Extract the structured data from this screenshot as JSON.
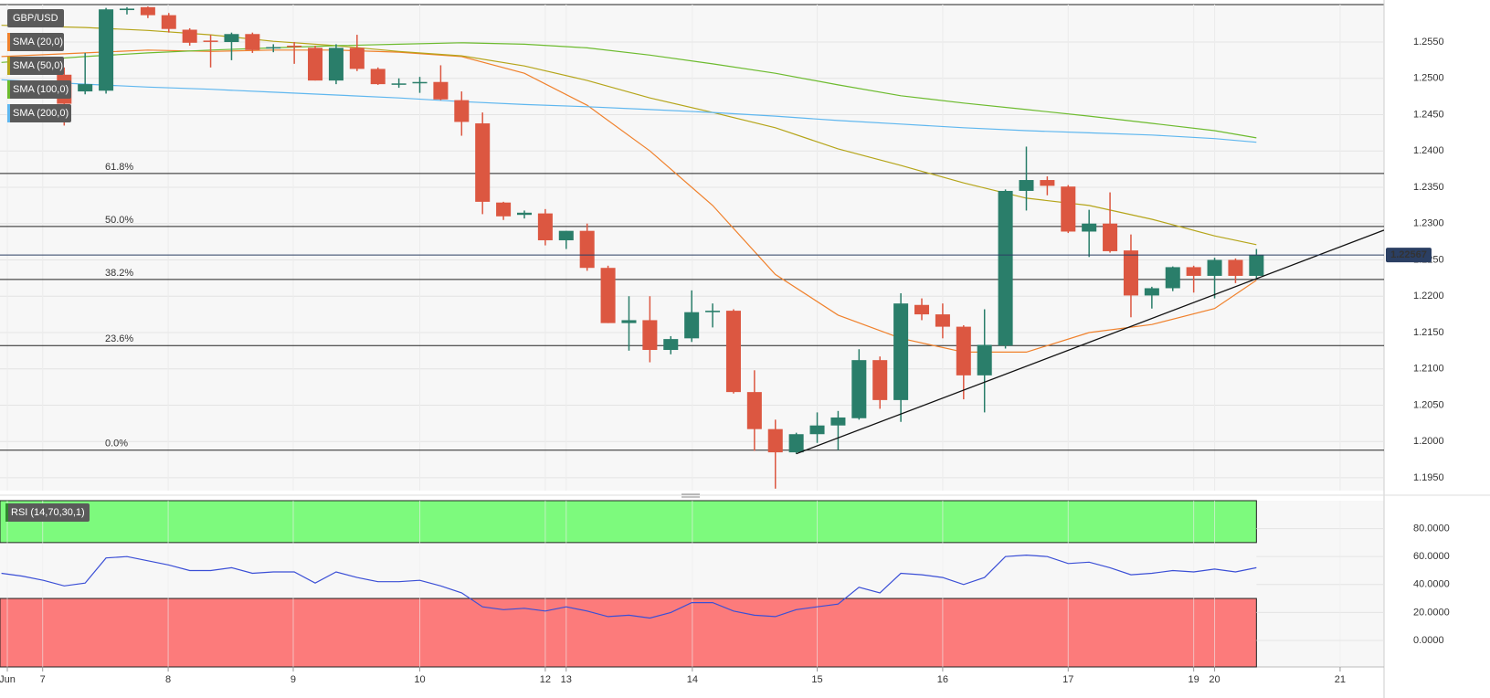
{
  "chart_data": [
    {
      "type": "candlestick",
      "title": "GBP/USD",
      "x": [
        -2,
        -1,
        0,
        1,
        2,
        3,
        4,
        5,
        6,
        7,
        8,
        9,
        10,
        11,
        12,
        13,
        14,
        15,
        16,
        17,
        18,
        19,
        20,
        21,
        22,
        23,
        24,
        25,
        26,
        27,
        28,
        29,
        30,
        31,
        32,
        33,
        34,
        35,
        36,
        37,
        38,
        39,
        40,
        41,
        42,
        43,
        44,
        45,
        46,
        47,
        48,
        49,
        50,
        51,
        52,
        53,
        54,
        55
      ],
      "open": [
        1.2505,
        1.2482,
        1.2483,
        1.2594,
        1.2598,
        1.2587,
        1.2567,
        1.2552,
        1.255,
        1.2561,
        1.2543,
        1.2545,
        1.2542,
        1.2497,
        1.2542,
        1.2513,
        1.2492,
        1.2494,
        1.2495,
        1.247,
        1.2438,
        1.2329,
        1.2312,
        1.2314,
        1.2277,
        1.229,
        1.2239,
        1.2163,
        1.2167,
        1.2126,
        1.2142,
        1.2178,
        1.218,
        1.2068,
        1.2017,
        1.1985,
        1.201,
        1.2022,
        1.2032,
        1.2112,
        1.2057,
        1.2188,
        1.2175,
        1.2158,
        1.2091,
        1.2132,
        1.2345,
        1.236,
        1.2351,
        1.2289,
        1.23,
        1.2263,
        1.2201,
        1.2211,
        1.224,
        1.2228,
        1.225,
        1.2228
      ],
      "high": [
        1.2515,
        1.2535,
        1.2597,
        1.2598,
        1.2599,
        1.259,
        1.2569,
        1.256,
        1.2563,
        1.2563,
        1.2547,
        1.255,
        1.2545,
        1.2547,
        1.256,
        1.2515,
        1.25,
        1.2502,
        1.2518,
        1.2482,
        1.2453,
        1.233,
        1.2318,
        1.232,
        1.229,
        1.23,
        1.2242,
        1.22,
        1.22,
        1.2145,
        1.2208,
        1.219,
        1.2182,
        1.2098,
        1.203,
        1.2012,
        1.204,
        1.2042,
        1.2127,
        1.2117,
        1.2204,
        1.2197,
        1.219,
        1.216,
        1.2182,
        1.2347,
        1.2406,
        1.2365,
        1.2353,
        1.2319,
        1.2343,
        1.2285,
        1.2213,
        1.2241,
        1.2242,
        1.2253,
        1.2252,
        1.2265
      ],
      "low": [
        1.2435,
        1.2478,
        1.2479,
        1.2588,
        1.2583,
        1.2563,
        1.2545,
        1.2515,
        1.2525,
        1.2535,
        1.2536,
        1.252,
        1.2497,
        1.2492,
        1.251,
        1.2491,
        1.2487,
        1.248,
        1.247,
        1.2421,
        1.2313,
        1.2305,
        1.2307,
        1.227,
        1.2265,
        1.2235,
        1.2163,
        1.2125,
        1.2109,
        1.212,
        1.2137,
        1.2157,
        1.2066,
        1.1987,
        1.1935,
        1.1983,
        1.1998,
        1.1988,
        1.203,
        1.2045,
        1.2027,
        1.2167,
        1.2142,
        1.2058,
        1.204,
        1.2128,
        1.2318,
        1.2339,
        1.2287,
        1.2254,
        1.226,
        1.2171,
        1.2183,
        1.2207,
        1.2205,
        1.2197,
        1.2218,
        1.2225
      ],
      "close": [
        1.2465,
        1.2492,
        1.2595,
        1.2596,
        1.2587,
        1.2568,
        1.2549,
        1.2551,
        1.2561,
        1.2539,
        1.2543,
        1.2544,
        1.2497,
        1.2542,
        1.2513,
        1.2492,
        1.2493,
        1.2495,
        1.2471,
        1.244,
        1.233,
        1.231,
        1.2315,
        1.2277,
        1.229,
        1.2239,
        1.2163,
        1.2167,
        1.2126,
        1.2141,
        1.2178,
        1.218,
        1.2068,
        1.2017,
        1.1985,
        1.201,
        1.2022,
        1.2033,
        1.2112,
        1.2057,
        1.219,
        1.2175,
        1.2158,
        1.2091,
        1.2133,
        1.2345,
        1.236,
        1.2352,
        1.2289,
        1.23,
        1.2262,
        1.2201,
        1.2211,
        1.224,
        1.2228,
        1.225,
        1.2228,
        1.2257
      ],
      "up_color": "#2a7e6a",
      "down_color": "#dc5741",
      "series": [
        {
          "name": "SMA (20,0)",
          "color": "#f0812c",
          "x": [
            -5,
            -1,
            2,
            5,
            8,
            11,
            14,
            17,
            20,
            23,
            26,
            29,
            32,
            35,
            38,
            41,
            44,
            47,
            50,
            53,
            55
          ],
          "values": [
            1.253,
            1.2535,
            1.2539,
            1.2537,
            1.2539,
            1.2539,
            1.2536,
            1.253,
            1.2507,
            1.2463,
            1.24,
            1.2325,
            1.223,
            1.2174,
            1.2142,
            1.2123,
            1.2123,
            1.215,
            1.2161,
            1.2183,
            1.2222
          ]
        },
        {
          "name": "SMA (50,0)",
          "color": "#b5a51a",
          "x": [
            -5,
            -1,
            2,
            5,
            8,
            11,
            14,
            17,
            20,
            23,
            26,
            29,
            32,
            35,
            38,
            41,
            44,
            47,
            50,
            53,
            55
          ],
          "values": [
            1.2573,
            1.257,
            1.2566,
            1.256,
            1.2551,
            1.2545,
            1.2537,
            1.2531,
            1.2517,
            1.2497,
            1.2473,
            1.2453,
            1.2432,
            1.2403,
            1.238,
            1.2356,
            1.2335,
            1.2325,
            1.2306,
            1.2283,
            1.2271
          ]
        },
        {
          "name": "SMA (100,0)",
          "color": "#6dbb2f",
          "x": [
            -5,
            -1,
            2,
            5,
            8,
            11,
            14,
            17,
            20,
            23,
            26,
            29,
            32,
            35,
            38,
            41,
            44,
            47,
            50,
            53,
            55
          ],
          "values": [
            1.2522,
            1.253,
            1.2535,
            1.2539,
            1.2542,
            1.2545,
            1.2547,
            1.2549,
            1.2547,
            1.2542,
            1.2532,
            1.252,
            1.2507,
            1.2491,
            1.2476,
            1.2466,
            1.2457,
            1.2448,
            1.2438,
            1.2428,
            1.2418
          ]
        },
        {
          "name": "SMA (200,0)",
          "color": "#5fb7ef",
          "x": [
            -5,
            -1,
            2,
            5,
            8,
            11,
            14,
            17,
            20,
            23,
            26,
            29,
            32,
            35,
            38,
            41,
            44,
            47,
            50,
            53,
            55
          ],
          "values": [
            1.2498,
            1.2492,
            1.2488,
            1.2485,
            1.2481,
            1.2477,
            1.2473,
            1.2468,
            1.2464,
            1.2461,
            1.2457,
            1.2453,
            1.2448,
            1.2442,
            1.2437,
            1.2432,
            1.2428,
            1.2425,
            1.2422,
            1.2417,
            1.2412
          ]
        }
      ],
      "fib_levels": [
        {
          "value": 1.2369,
          "label": "61.8%"
        },
        {
          "value": 1.2296,
          "label": "50.0%"
        },
        {
          "value": 1.2223,
          "label": "38.2%"
        },
        {
          "value": 1.2132,
          "label": "23.6%"
        },
        {
          "value": 1.1988,
          "label": "0.0%"
        }
      ],
      "trendline": {
        "x": [
          33,
          61.1
        ],
        "values": [
          1.1983,
          1.2291
        ],
        "color": "#111111"
      },
      "last_price": 1.22567,
      "last_price_color": "#2b3f63",
      "xlim": [
        -5.07,
        61.1
      ],
      "ylim": [
        1.19323,
        1.26016
      ],
      "yticks": [
        {
          "value": 1.195,
          "label": "1.1950"
        },
        {
          "value": 1.2,
          "label": "1.2000"
        },
        {
          "value": 1.205,
          "label": "1.2050"
        },
        {
          "value": 1.21,
          "label": "1.2100"
        },
        {
          "value": 1.215,
          "label": "1.2150"
        },
        {
          "value": 1.22,
          "label": "1.2200"
        },
        {
          "value": 1.225,
          "label": "1.2250"
        },
        {
          "value": 1.23,
          "label": "1.2300"
        },
        {
          "value": 1.235,
          "label": "1.2350"
        },
        {
          "value": 1.24,
          "label": "1.2400"
        },
        {
          "value": 1.245,
          "label": "1.2450"
        },
        {
          "value": 1.25,
          "label": "1.2500"
        },
        {
          "value": 1.255,
          "label": "1.2550"
        }
      ],
      "grid": true
    },
    {
      "type": "line",
      "title": "RSI (14,70,30,1)",
      "color": "#3b4fd6",
      "x": [
        -5,
        -4,
        -3,
        -2,
        -1,
        0,
        1,
        2,
        3,
        4,
        5,
        6,
        7,
        8,
        9,
        10,
        11,
        12,
        13,
        14,
        15,
        16,
        17,
        18,
        19,
        20,
        21,
        22,
        23,
        24,
        25,
        26,
        27,
        28,
        29,
        30,
        31,
        32,
        33,
        34,
        35,
        36,
        37,
        38,
        39,
        40,
        41,
        42,
        43,
        44,
        45,
        46,
        47,
        48,
        49,
        50,
        51,
        52,
        53,
        54,
        55
      ],
      "values": [
        48,
        46,
        43,
        39,
        41,
        59,
        60,
        57,
        54,
        50,
        50,
        52,
        48,
        49,
        49,
        41,
        49,
        45,
        42,
        42,
        43,
        39,
        34,
        24,
        22,
        23,
        21,
        24,
        21,
        17,
        18,
        16,
        20,
        27,
        27,
        21,
        18,
        17,
        22,
        24,
        26,
        38,
        34,
        48,
        47,
        45,
        40,
        45,
        60,
        61,
        60,
        55,
        56,
        52,
        47,
        48,
        50,
        49,
        51,
        49,
        52
      ],
      "overbought": 70,
      "oversold": 30,
      "overbought_color": "#7dfa7d",
      "oversold_color": "#fc7b7b",
      "xlim": [
        -5.07,
        61.1
      ],
      "ylim": [
        -19,
        100
      ],
      "yticks": [
        {
          "value": 0,
          "label": "0.0000"
        },
        {
          "value": 20,
          "label": "20.0000"
        },
        {
          "value": 40,
          "label": "40.0000"
        },
        {
          "value": 60,
          "label": "60.0000"
        },
        {
          "value": 80,
          "label": "80.0000"
        }
      ],
      "xticks": [
        {
          "value": -4.72,
          "label": "Jun"
        },
        {
          "value": -3.03,
          "label": "7"
        },
        {
          "value": 2.97,
          "label": "8"
        },
        {
          "value": 8.95,
          "label": "9"
        },
        {
          "value": 15,
          "label": "10"
        },
        {
          "value": 21,
          "label": "12"
        },
        {
          "value": 22,
          "label": "13"
        },
        {
          "value": 28.03,
          "label": "14"
        },
        {
          "value": 34,
          "label": "15"
        },
        {
          "value": 40,
          "label": "16"
        },
        {
          "value": 46,
          "label": "17"
        },
        {
          "value": 52,
          "label": "19"
        },
        {
          "value": 53,
          "label": "20"
        },
        {
          "value": 59,
          "label": "21"
        }
      ],
      "grid": true
    }
  ]
}
